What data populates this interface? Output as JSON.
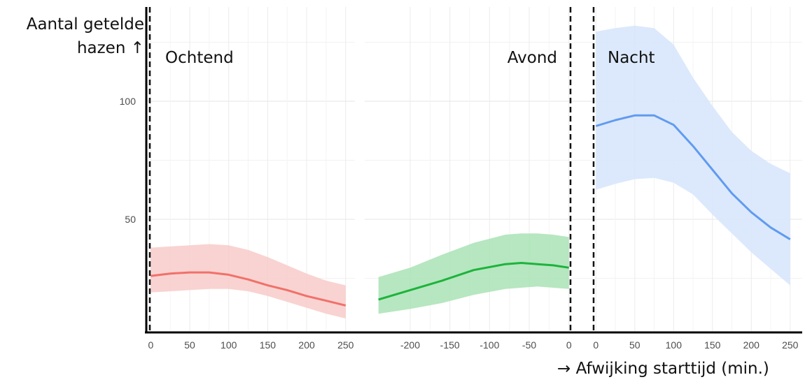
{
  "chart_data": {
    "type": "line",
    "ylabel": [
      "Aantal getelde",
      "hazen ↑"
    ],
    "xlabel": "→ Afwijking starttijd (min.)",
    "ylim": [
      0,
      140
    ],
    "yticks": [
      50,
      100
    ],
    "grid": true,
    "panels": [
      {
        "name": "Ochtend",
        "xlim": [
          -3,
          252
        ],
        "xticks": [
          0,
          50,
          100,
          150,
          200,
          250
        ],
        "color": "#f0716a",
        "band_color": "#f8cbc9",
        "x": [
          0,
          25,
          50,
          75,
          100,
          125,
          150,
          175,
          200,
          225,
          250
        ],
        "y": [
          26,
          27,
          27.5,
          27.5,
          26.5,
          24.5,
          22,
          20,
          17.5,
          15.5,
          13.5
        ],
        "lower": [
          19,
          19.5,
          20,
          20.5,
          20.5,
          19.5,
          17.5,
          15,
          12.5,
          10,
          8
        ],
        "upper": [
          38,
          38.5,
          39,
          39.5,
          39,
          37,
          34,
          30.5,
          27,
          24,
          22
        ]
      },
      {
        "name": "Avond",
        "xlim": [
          -245,
          2
        ],
        "xticks": [
          -200,
          -150,
          -100,
          -50,
          0
        ],
        "color": "#1db33c",
        "band_color": "#a9e3b5",
        "x": [
          -240,
          -200,
          -160,
          -120,
          -80,
          -60,
          -40,
          -20,
          0
        ],
        "y": [
          16,
          20,
          24,
          28.5,
          31,
          31.5,
          31,
          30.5,
          29.5
        ],
        "lower": [
          10,
          12,
          14.5,
          18,
          20.5,
          21,
          21.5,
          21,
          20.5
        ],
        "upper": [
          25.5,
          29.5,
          35,
          40,
          43.5,
          44,
          44,
          43.5,
          42.5
        ]
      },
      {
        "name": "Nacht",
        "xlim": [
          -3,
          252
        ],
        "xticks": [
          0,
          50,
          100,
          150,
          200,
          250
        ],
        "color": "#619bf0",
        "band_color": "#d6e5fb",
        "x": [
          0,
          25,
          50,
          75,
          100,
          125,
          150,
          175,
          200,
          225,
          250
        ],
        "y": [
          89.5,
          92,
          94,
          94,
          90,
          81,
          71,
          61,
          53,
          46.5,
          41.5
        ],
        "lower": [
          62.5,
          65,
          67,
          67.5,
          65.5,
          60.5,
          52,
          44,
          36,
          29,
          22
        ],
        "upper": [
          129.5,
          131,
          132,
          131,
          124,
          110,
          98,
          87,
          79,
          73.5,
          69.5
        ]
      }
    ]
  }
}
